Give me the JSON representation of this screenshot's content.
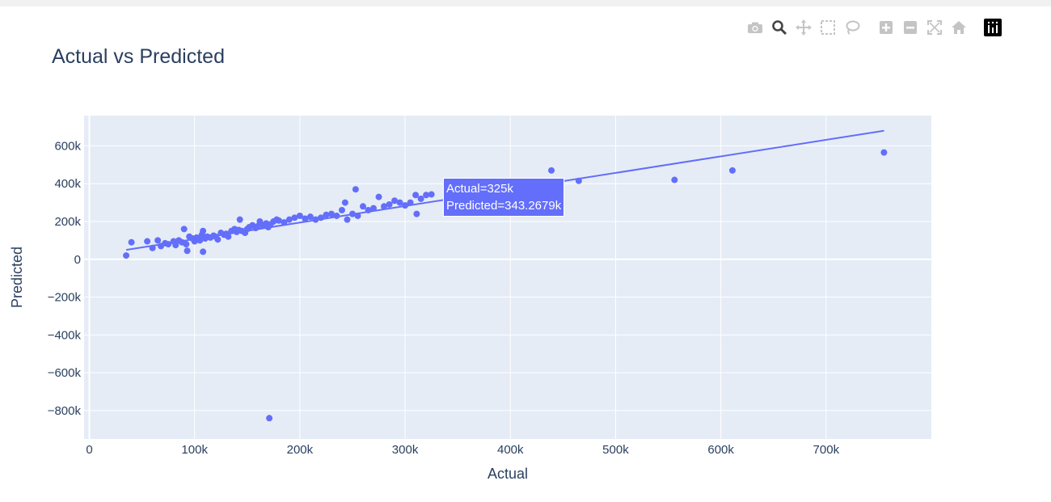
{
  "modebar": {
    "icons": [
      "camera-icon",
      "zoom-icon",
      "pan-icon",
      "box-select-icon",
      "lasso-icon",
      "zoom-in-icon",
      "zoom-out-icon",
      "autoscale-icon",
      "reset-axes-icon",
      "plotly-logo-icon"
    ]
  },
  "chart_data": {
    "type": "scatter",
    "title": "Actual vs Predicted",
    "xlabel": "Actual",
    "ylabel": "Predicted",
    "xlim": [
      -5000,
      800000
    ],
    "ylim": [
      -950000,
      760000
    ],
    "xticks": [
      0,
      100000,
      200000,
      300000,
      400000,
      500000,
      600000,
      700000
    ],
    "xtick_labels": [
      "0",
      "100k",
      "200k",
      "300k",
      "400k",
      "500k",
      "600k",
      "700k"
    ],
    "yticks": [
      -800000,
      -600000,
      -400000,
      -200000,
      0,
      200000,
      400000,
      600000
    ],
    "ytick_labels": [
      "−800k",
      "−600k",
      "−400k",
      "−200k",
      "0",
      "200k",
      "400k",
      "600k"
    ],
    "grid": true,
    "colors": {
      "marker": "#636efa",
      "plot_bg": "#e5ecf6",
      "grid": "#ffffff",
      "text": "#2a3f5f"
    },
    "series": [
      {
        "mode": "markers",
        "x": [
          35000,
          40000,
          55000,
          60000,
          65000,
          68000,
          72000,
          75000,
          80000,
          82000,
          85000,
          88000,
          90000,
          92000,
          95000,
          98000,
          100000,
          102000,
          105000,
          107000,
          108000,
          110000,
          112000,
          115000,
          118000,
          120000,
          122000,
          125000,
          128000,
          130000,
          132000,
          135000,
          138000,
          140000,
          142000,
          145000,
          148000,
          150000,
          152000,
          155000,
          158000,
          160000,
          162000,
          165000,
          168000,
          170000,
          172000,
          175000,
          178000,
          180000,
          185000,
          190000,
          195000,
          200000,
          205000,
          210000,
          215000,
          220000,
          225000,
          230000,
          235000,
          240000,
          243000,
          245000,
          250000,
          253000,
          255000,
          260000,
          265000,
          270000,
          275000,
          280000,
          285000,
          290000,
          295000,
          300000,
          305000,
          310000,
          311000,
          315000,
          320000,
          325000,
          439000,
          465000,
          556000,
          611000,
          755000,
          171000,
          108000,
          93000,
          143000
        ],
        "y": [
          20000,
          90000,
          95000,
          60000,
          100000,
          70000,
          85000,
          80000,
          95000,
          75000,
          100000,
          90000,
          160000,
          80000,
          120000,
          110000,
          95000,
          115000,
          100000,
          130000,
          150000,
          110000,
          120000,
          115000,
          125000,
          120000,
          105000,
          140000,
          130000,
          135000,
          120000,
          150000,
          160000,
          145000,
          155000,
          150000,
          140000,
          160000,
          170000,
          180000,
          165000,
          175000,
          200000,
          180000,
          190000,
          170000,
          185000,
          200000,
          210000,
          205000,
          195000,
          210000,
          220000,
          230000,
          215000,
          225000,
          210000,
          220000,
          235000,
          240000,
          230000,
          260000,
          300000,
          210000,
          240000,
          370000,
          230000,
          280000,
          260000,
          270000,
          330000,
          280000,
          290000,
          310000,
          300000,
          285000,
          300000,
          340000,
          240000,
          320000,
          340000,
          343267.9,
          470000,
          415000,
          420000,
          470000,
          565000,
          -840000,
          40000,
          45000,
          210000
        ]
      },
      {
        "mode": "lines",
        "x": [
          35000,
          755000
        ],
        "y": [
          50000,
          680000
        ]
      }
    ],
    "hover": {
      "line1": "Actual=325k",
      "line2": "Predicted=343.2679k",
      "x": 325000,
      "y": 343267.9
    }
  }
}
